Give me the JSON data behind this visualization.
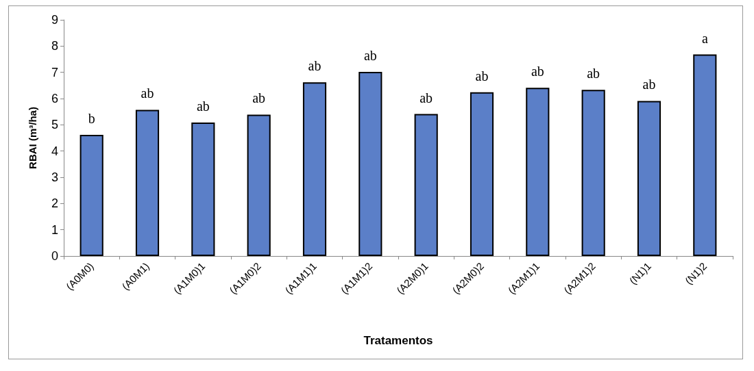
{
  "chart_data": {
    "type": "bar",
    "xlabel": "Tratamentos",
    "ylabel": "RBAI (m³/ha)",
    "categories": [
      "(A0M0)",
      "(A0M1)",
      "(A1M0)1",
      "(A1M0)2",
      "(A1M1)1",
      "(A1M1)2",
      "(A2M0)1",
      "(A2M0)2",
      "(A2M1)1",
      "(A2M1)2",
      "(N1)1",
      "(N1)2"
    ],
    "values": [
      4.62,
      5.57,
      5.09,
      5.39,
      6.62,
      7.02,
      5.41,
      6.24,
      6.41,
      6.33,
      5.91,
      7.68
    ],
    "value_labels": [
      "b",
      "ab",
      "ab",
      "ab",
      "ab",
      "ab",
      "ab",
      "ab",
      "ab",
      "ab",
      "ab",
      "a"
    ],
    "color": "#5b7fc8",
    "ylim": [
      0,
      9
    ],
    "yticks": [
      0,
      1,
      2,
      3,
      4,
      5,
      6,
      7,
      8,
      9
    ],
    "grid": false
  }
}
